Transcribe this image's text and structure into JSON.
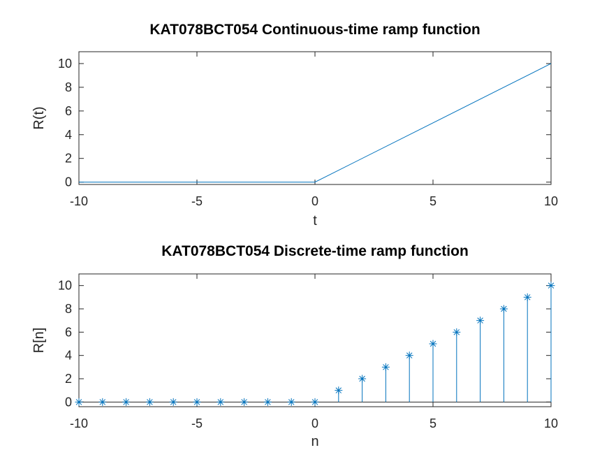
{
  "colors": {
    "series": "#0072bd",
    "axis": "#262626",
    "background": "#ffffff"
  },
  "chart_data": [
    {
      "type": "line",
      "title": "KAT078BCT054 Continuous-time ramp function",
      "xlabel": "t",
      "ylabel": "R(t)",
      "xlim": [
        -10,
        10
      ],
      "ylim": [
        -0.2,
        11
      ],
      "xticks": [
        -10,
        -5,
        0,
        5,
        10
      ],
      "yticks": [
        0,
        2,
        4,
        6,
        8,
        10
      ],
      "grid": false,
      "series": [
        {
          "x": [
            -10,
            0,
            10
          ],
          "y": [
            0,
            0,
            10
          ]
        }
      ]
    },
    {
      "type": "stem",
      "title": "KAT078BCT054 Discrete-time ramp function",
      "xlabel": "n",
      "ylabel": "R[n]",
      "xlim": [
        -10,
        10
      ],
      "ylim": [
        -0.4,
        11
      ],
      "xticks": [
        -10,
        -5,
        0,
        5,
        10
      ],
      "yticks": [
        0,
        2,
        4,
        6,
        8,
        10
      ],
      "grid": false,
      "marker": "asterisk",
      "series": [
        {
          "x": [
            -10,
            -9,
            -8,
            -7,
            -6,
            -5,
            -4,
            -3,
            -2,
            -1,
            0,
            1,
            2,
            3,
            4,
            5,
            6,
            7,
            8,
            9,
            10
          ],
          "y": [
            0,
            0,
            0,
            0,
            0,
            0,
            0,
            0,
            0,
            0,
            0,
            1,
            2,
            3,
            4,
            5,
            6,
            7,
            8,
            9,
            10
          ]
        }
      ]
    }
  ]
}
